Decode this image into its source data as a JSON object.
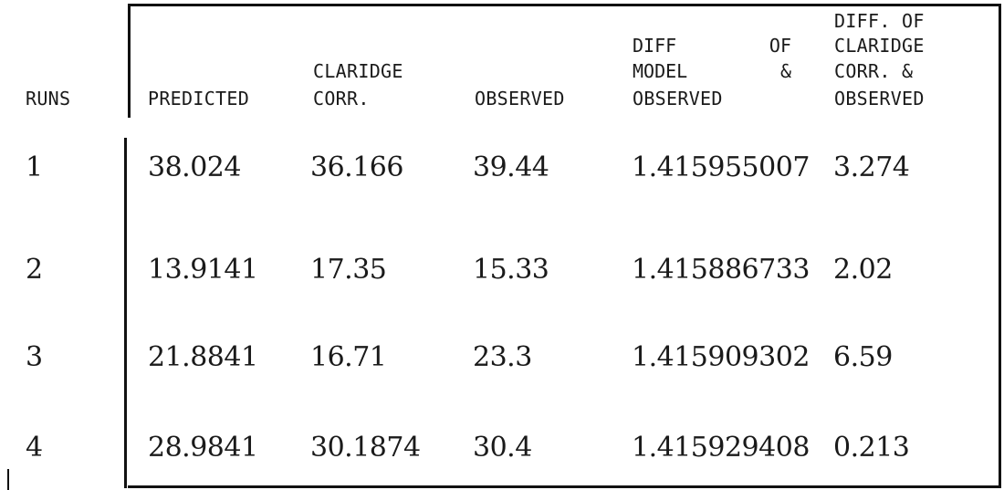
{
  "columns": {
    "runs": "RUNS",
    "predicted": "PREDICTED",
    "claridge": [
      "CLARIDGE",
      "CORR."
    ],
    "observed": "OBSERVED",
    "diff_model": {
      "line1_left": "DIFF",
      "line1_right": "OF",
      "line2_left": "MODEL",
      "line2_right": "&",
      "line3": "OBSERVED"
    },
    "diff_claridge": [
      "DIFF. OF",
      "CLARIDGE",
      "CORR. &",
      "OBSERVED"
    ]
  },
  "rows": [
    {
      "run": "1",
      "predicted": "38.024",
      "claridge": "36.166",
      "observed": "39.44",
      "diff_model": "1.415955007",
      "diff_claridge": "3.274"
    },
    {
      "run": "2",
      "predicted": "13.9141",
      "claridge": "17.35",
      "observed": "15.33",
      "diff_model": "1.415886733",
      "diff_claridge": "2.02"
    },
    {
      "run": "3",
      "predicted": "21.8841",
      "claridge": "16.71",
      "observed": "23.3",
      "diff_model": "1.415909302",
      "diff_claridge": "6.59"
    },
    {
      "run": "4",
      "predicted": "28.9841",
      "claridge": "30.1874",
      "observed": "30.4",
      "diff_model": "1.415929408",
      "diff_claridge": "0.213"
    }
  ]
}
